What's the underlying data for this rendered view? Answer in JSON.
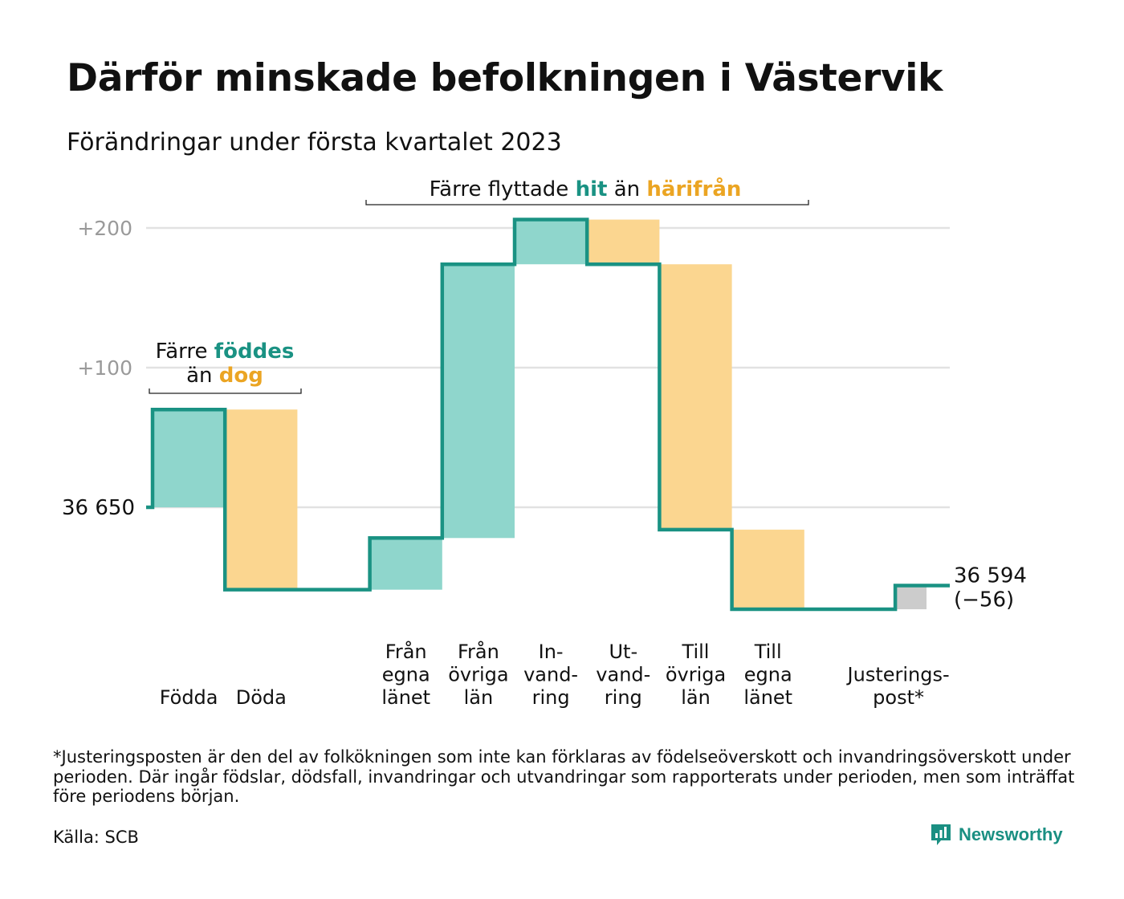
{
  "title": "Därför minskade befolkningen i Västervik",
  "subtitle": "Förändringar under första kvartalet 2023",
  "colors": {
    "teal_line": "#1a9283",
    "teal_fill": "#8fd6cc",
    "teal_text": "#1a9283",
    "yellow_fill": "#fbd690",
    "yellow_text": "#eba523",
    "grey_fill": "#cccccc",
    "grid": "#e2e2e2",
    "tick_text": "#9a9a9a"
  },
  "annotations": {
    "births": {
      "line1_pre": "Färre ",
      "line1_hl": "föddes",
      "line2_pre": "än ",
      "line2_hl": "dog"
    },
    "migration": {
      "pre": "Färre flyttade ",
      "hl1": "hit",
      "mid": " än ",
      "hl2": "härifrån"
    }
  },
  "chart_data": {
    "type": "waterfall",
    "baseline_value": 36650,
    "start_label": "36 650",
    "end_label": "36 594",
    "end_change_label": "(−56)",
    "yticks": [
      {
        "value": 0,
        "label": ""
      },
      {
        "value": 100,
        "label": "+100"
      },
      {
        "value": 200,
        "label": "+200"
      }
    ],
    "ylim": [
      -75,
      210
    ],
    "grid": true,
    "steps": [
      {
        "lines": [
          "Födda"
        ],
        "delta": 70,
        "kind": "in"
      },
      {
        "lines": [
          "Döda"
        ],
        "delta": -129,
        "kind": "out"
      },
      {
        "lines": [
          ""
        ],
        "delta": 0,
        "kind": "gap"
      },
      {
        "lines": [
          "Från",
          "egna",
          "länet"
        ],
        "delta": 37,
        "kind": "in"
      },
      {
        "lines": [
          "Från",
          "övriga",
          "län"
        ],
        "delta": 196,
        "kind": "in"
      },
      {
        "lines": [
          "In-",
          "vand-",
          "ring"
        ],
        "delta": 32,
        "kind": "in"
      },
      {
        "lines": [
          "Ut-",
          "vand-",
          "ring"
        ],
        "delta": -32,
        "kind": "out"
      },
      {
        "lines": [
          "Till",
          "övriga",
          "län"
        ],
        "delta": -190,
        "kind": "out"
      },
      {
        "lines": [
          "Till",
          "egna",
          "länet"
        ],
        "delta": -57,
        "kind": "out"
      },
      {
        "lines": [
          ""
        ],
        "delta": 0,
        "kind": "gap"
      },
      {
        "lines": [
          "Justerings-",
          "post*"
        ],
        "delta": 17,
        "kind": "adjust"
      }
    ]
  },
  "footnote": "*Justeringsposten är den del av folkökningen som inte kan förklaras av födelseöverskott och invandringsöverskott under perioden. Där ingår födslar, dödsfall, invandringar och utvandringar som rapporterats under perioden, men som inträffat före periodens början.",
  "source": "Källa: SCB",
  "brand": {
    "name": "Newsworthy",
    "icon": "newsworthy-logo-icon"
  }
}
